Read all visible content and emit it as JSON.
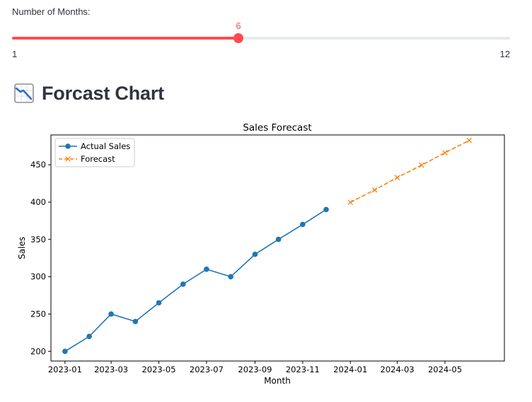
{
  "slider": {
    "label": "Number of Months:",
    "min": 1,
    "max": 12,
    "value": 6,
    "value_text": "6",
    "min_text": "1",
    "max_text": "12",
    "accent_color": "#ff4b4b",
    "track_color": "#e6e9ef"
  },
  "section": {
    "icon": "chart-decreasing-icon",
    "title": "Forcast Chart"
  },
  "chart_data": {
    "type": "line",
    "title": "Sales Forecast",
    "xlabel": "Month",
    "ylabel": "Sales",
    "ylim": [
      187,
      490
    ],
    "yticks": [
      200,
      250,
      300,
      350,
      400,
      450
    ],
    "xlim": [
      "2022-12-14",
      "2024-07-16"
    ],
    "xticks": [
      "2023-01",
      "2023-03",
      "2023-05",
      "2023-07",
      "2023-09",
      "2023-11",
      "2024-01",
      "2024-03",
      "2024-05"
    ],
    "grid": false,
    "legend": "top-left",
    "series": [
      {
        "name": "Actual Sales",
        "color": "#1f77b4",
        "style": "solid",
        "marker": "circle",
        "x": [
          "2023-01-01",
          "2023-02-01",
          "2023-03-01",
          "2023-04-01",
          "2023-05-01",
          "2023-06-01",
          "2023-07-01",
          "2023-08-01",
          "2023-09-01",
          "2023-10-01",
          "2023-11-01",
          "2023-12-01"
        ],
        "values": [
          200,
          220,
          250,
          240,
          265,
          290,
          310,
          300,
          330,
          350,
          370,
          390
        ]
      },
      {
        "name": "Forecast",
        "color": "#ff7f0e",
        "style": "dashed",
        "marker": "x",
        "x": [
          "2024-01-01",
          "2024-02-01",
          "2024-03-01",
          "2024-04-01",
          "2024-05-01",
          "2024-06-01"
        ],
        "values": [
          399.7,
          416.3,
          432.9,
          449.5,
          466.1,
          482.7
        ]
      }
    ]
  }
}
